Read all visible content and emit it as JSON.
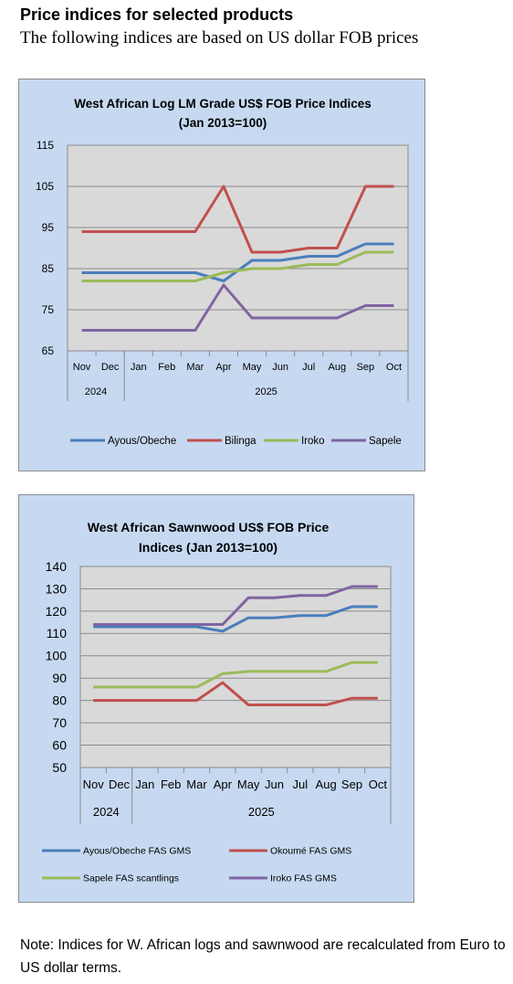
{
  "header": {
    "title": "Price indices for selected products",
    "subtitle": "The following indices are based on US dollar FOB prices"
  },
  "note": "Note: Indices for W. African logs and sawnwood are recalculated from Euro to US dollar terms.",
  "chart_data": [
    {
      "type": "line",
      "title": "West African Log LM Grade US$ FOB Price Indices",
      "subtitle": "(Jan 2013=100)",
      "categories": [
        "Nov",
        "Dec",
        "Jan",
        "Feb",
        "Mar",
        "Apr",
        "May",
        "Jun",
        "Jul",
        "Aug",
        "Sep",
        "Oct"
      ],
      "year_groups": [
        {
          "label": "2024",
          "span": 2
        },
        {
          "label": "2025",
          "span": 10
        }
      ],
      "ylim": [
        65,
        115
      ],
      "yticks": [
        65,
        75,
        85,
        95,
        105,
        115
      ],
      "grid": true,
      "legend": "bottom",
      "series": [
        {
          "name": "Ayous/Obeche",
          "color": "#4a7ebb",
          "values": [
            84,
            84,
            84,
            84,
            84,
            82,
            87,
            87,
            88,
            88,
            91,
            91
          ]
        },
        {
          "name": "Bilinga",
          "color": "#c0504d",
          "values": [
            94,
            94,
            94,
            94,
            94,
            105,
            89,
            89,
            90,
            90,
            105,
            105
          ]
        },
        {
          "name": "Iroko",
          "color": "#9bbb59",
          "values": [
            82,
            82,
            82,
            82,
            82,
            84,
            85,
            85,
            86,
            86,
            89,
            89
          ]
        },
        {
          "name": "Sapele",
          "color": "#8064a2",
          "values": [
            70,
            70,
            70,
            70,
            70,
            81,
            73,
            73,
            73,
            73,
            76,
            76
          ]
        }
      ]
    },
    {
      "type": "line",
      "title": "West African Sawnwood US$ FOB Price",
      "subtitle": "Indices (Jan 2013=100)",
      "categories": [
        "Nov",
        "Dec",
        "Jan",
        "Feb",
        "Mar",
        "Apr",
        "May",
        "Jun",
        "Jul",
        "Aug",
        "Sep",
        "Oct"
      ],
      "year_groups": [
        {
          "label": "2024",
          "span": 2
        },
        {
          "label": "2025",
          "span": 10
        }
      ],
      "ylim": [
        50,
        140
      ],
      "yticks": [
        50,
        60,
        70,
        80,
        90,
        100,
        110,
        120,
        130,
        140
      ],
      "grid": true,
      "legend": "bottom",
      "series": [
        {
          "name": "Ayous/Obeche  FAS GMS",
          "color": "#4a7ebb",
          "values": [
            113,
            113,
            113,
            113,
            113,
            111,
            117,
            117,
            118,
            118,
            122,
            122
          ]
        },
        {
          "name": "Okoumé  FAS GMS",
          "color": "#c0504d",
          "values": [
            80,
            80,
            80,
            80,
            80,
            88,
            78,
            78,
            78,
            78,
            81,
            81
          ]
        },
        {
          "name": "Sapele  FAS scantlings",
          "color": "#9bbb59",
          "values": [
            86,
            86,
            86,
            86,
            86,
            92,
            93,
            93,
            93,
            93,
            97,
            97
          ]
        },
        {
          "name": "Iroko FAS GMS",
          "color": "#8064a2",
          "values": [
            114,
            114,
            114,
            114,
            114,
            114,
            126,
            126,
            127,
            127,
            131,
            131
          ]
        }
      ]
    }
  ]
}
